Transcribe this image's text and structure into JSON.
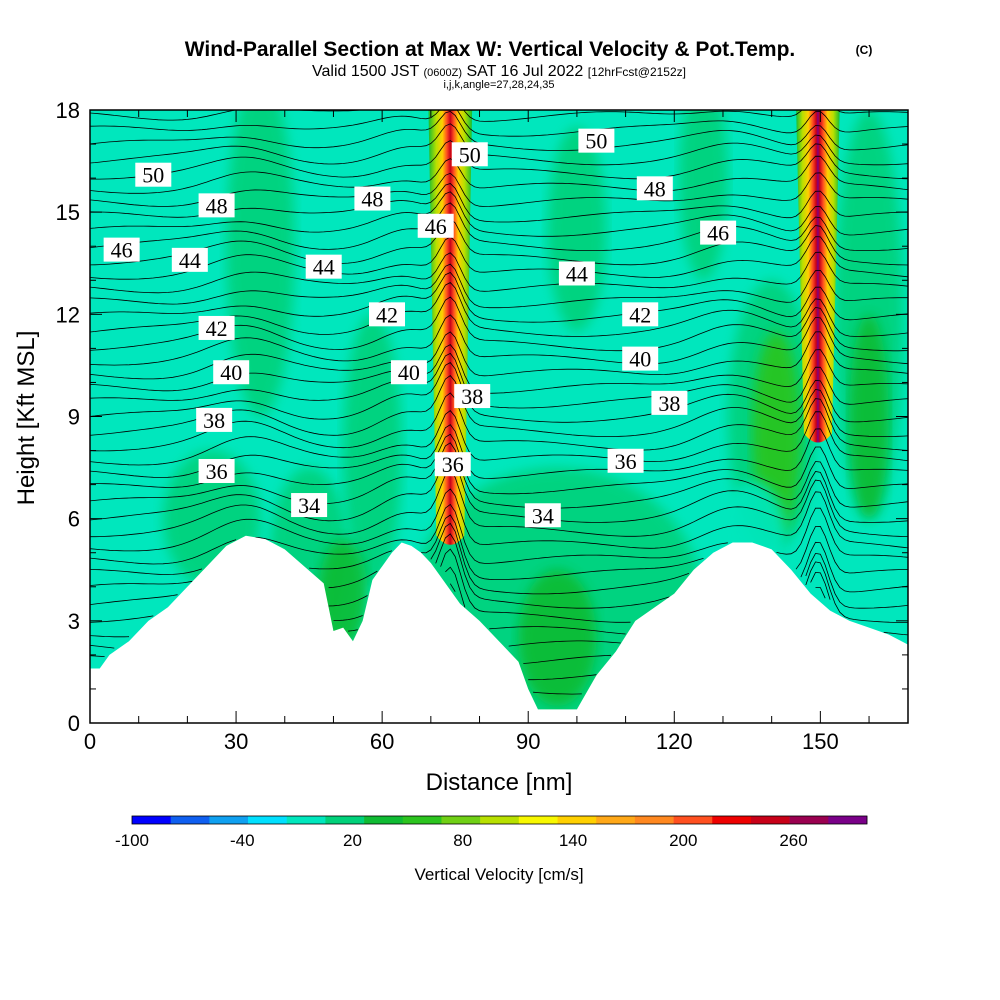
{
  "chart_data": {
    "type": "heatmap",
    "title": "Wind-Parallel Section at Max W: Vertical Velocity & Pot.Temp.",
    "copyright": "(C)",
    "subtitle": {
      "valid": "Valid 1500 JST",
      "utc": "(0600Z)",
      "date": "SAT 16 Jul 2022",
      "forecast": "[12hrFcst@2152z]"
    },
    "indices": "i,j,k,angle=27,28,24,35",
    "xlabel": "Distance [nm]",
    "ylabel": "Height [Kft MSL]",
    "xlim": [
      0,
      168
    ],
    "ylim": [
      0,
      18
    ],
    "x_ticks": [
      0,
      30,
      60,
      90,
      120,
      150
    ],
    "y_ticks": [
      0,
      3,
      6,
      9,
      12,
      15,
      18
    ],
    "colorbar": {
      "label": "Vertical Velocity [cm/s]",
      "tick_labels": [
        -100,
        -40,
        20,
        80,
        140,
        200,
        260
      ],
      "min": -100,
      "max": 300,
      "colors": [
        "#0000ff",
        "#0f5ff0",
        "#0fa0f0",
        "#00e0ff",
        "#00e7bd",
        "#00d17a",
        "#10bb33",
        "#2cc41f",
        "#70d015",
        "#b8e000",
        "#f8f800",
        "#ffd000",
        "#ffa818",
        "#ff8820",
        "#ff5020",
        "#ee0000",
        "#c80018",
        "#9a0050",
        "#7a0088"
      ]
    },
    "terrain": {
      "distance_nm": [
        0,
        2,
        4,
        8,
        12,
        16,
        20,
        24,
        28,
        32,
        36,
        40,
        44,
        48,
        50,
        52,
        54,
        56,
        58,
        60,
        62,
        64,
        66,
        68,
        70,
        72,
        76,
        80,
        84,
        88,
        90,
        92,
        96,
        100,
        104,
        108,
        112,
        116,
        120,
        124,
        128,
        132,
        136,
        140,
        144,
        148,
        152,
        156,
        160,
        164,
        168
      ],
      "height_kft": [
        1.6,
        1.6,
        2.0,
        2.4,
        3.0,
        3.4,
        4.0,
        4.6,
        5.2,
        5.5,
        5.4,
        5.1,
        4.6,
        4.1,
        2.7,
        2.8,
        2.4,
        3.0,
        4.2,
        4.6,
        5.0,
        5.3,
        5.2,
        5.0,
        4.7,
        4.3,
        3.5,
        3.0,
        2.4,
        1.8,
        1.0,
        0.4,
        0.4,
        0.4,
        1.4,
        2.1,
        3.0,
        3.4,
        3.8,
        4.5,
        5.0,
        5.3,
        5.3,
        5.1,
        4.5,
        3.8,
        3.3,
        3.0,
        2.8,
        2.6,
        2.3
      ]
    },
    "updrafts": [
      {
        "distance_nm": 74,
        "top_kft": 18,
        "base_kft": 5.5,
        "max_cm_s": 240
      },
      {
        "distance_nm": 149.5,
        "top_kft": 18,
        "base_kft": 8.5,
        "max_cm_s": 290
      }
    ],
    "theta_contour_labels": [
      {
        "text": "50",
        "x": 13,
        "y": 16.1
      },
      {
        "text": "48",
        "x": 26,
        "y": 15.2
      },
      {
        "text": "46",
        "x": 6.5,
        "y": 13.9
      },
      {
        "text": "44",
        "x": 20.5,
        "y": 13.6
      },
      {
        "text": "42",
        "x": 26,
        "y": 11.6
      },
      {
        "text": "40",
        "x": 29,
        "y": 10.3
      },
      {
        "text": "38",
        "x": 25.5,
        "y": 8.9
      },
      {
        "text": "36",
        "x": 26,
        "y": 7.4
      },
      {
        "text": "34",
        "x": 45,
        "y": 6.4
      },
      {
        "text": "44",
        "x": 48,
        "y": 13.4
      },
      {
        "text": "48",
        "x": 58,
        "y": 15.4
      },
      {
        "text": "42",
        "x": 61,
        "y": 12.0
      },
      {
        "text": "40",
        "x": 65.5,
        "y": 10.3
      },
      {
        "text": "46",
        "x": 71,
        "y": 14.6
      },
      {
        "text": "50",
        "x": 78,
        "y": 16.7
      },
      {
        "text": "38",
        "x": 78.5,
        "y": 9.6
      },
      {
        "text": "36",
        "x": 74.5,
        "y": 7.6
      },
      {
        "text": "34",
        "x": 93,
        "y": 6.1
      },
      {
        "text": "50",
        "x": 104,
        "y": 17.1
      },
      {
        "text": "44",
        "x": 100,
        "y": 13.2
      },
      {
        "text": "48",
        "x": 116,
        "y": 15.7
      },
      {
        "text": "42",
        "x": 113,
        "y": 12.0
      },
      {
        "text": "40",
        "x": 113,
        "y": 10.7
      },
      {
        "text": "38",
        "x": 119,
        "y": 9.4
      },
      {
        "text": "36",
        "x": 110,
        "y": 7.7
      },
      {
        "text": "46",
        "x": 129,
        "y": 14.4
      }
    ]
  }
}
